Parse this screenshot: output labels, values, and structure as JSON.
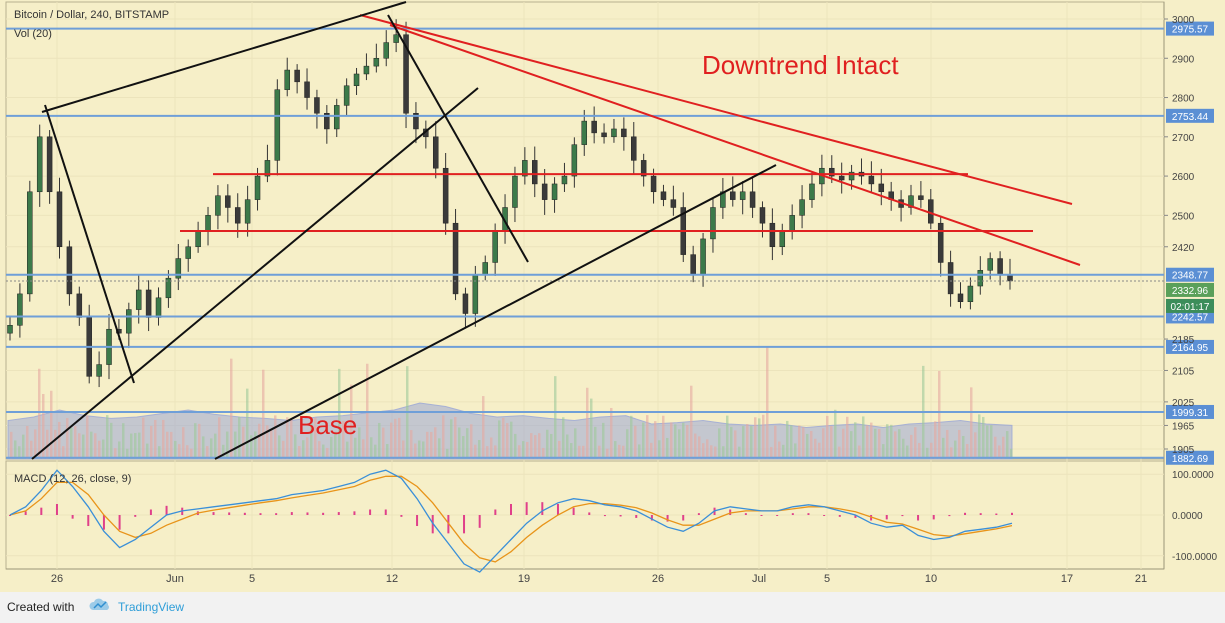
{
  "header": {
    "title": "Bitcoin / Dollar, 240, BITSTAMP",
    "volume_label": "Vol (20)",
    "macd_label": "MACD (12, 26, close, 9)"
  },
  "annotations": {
    "downtrend": "Downtrend Intact",
    "base": "Base"
  },
  "footer": {
    "created_with": "Created with",
    "brand": "TradingView"
  },
  "colors": {
    "background": "#f6efc8",
    "level_line": "#6f9fd8",
    "red_line": "#e02020",
    "black_line": "#111111",
    "candle_up": "#3c7a4a",
    "candle_down": "#3a3a3a",
    "volume_fill": "#9aa6d6",
    "macd_line": "#3a8fd8",
    "signal_line": "#e8941a",
    "histogram": "#e0408a",
    "last_price": "#5aa05a",
    "countdown": "#3c8d5a"
  },
  "chart_data": {
    "type": "candlestick",
    "title": "Bitcoin / Dollar, 240, BITSTAMP",
    "price_axis": {
      "ticks": [
        3000,
        2900,
        2800,
        2700,
        2600,
        2500,
        2420,
        2185,
        2105,
        2025,
        1965,
        1905
      ],
      "ylim": [
        1880,
        3010
      ]
    },
    "time_axis": {
      "ticks": [
        "26",
        "Jun",
        "5",
        "12",
        "19",
        "26",
        "Jul",
        "5",
        "10",
        "17",
        "21"
      ]
    },
    "horizontal_levels": [
      2975.57,
      2753.44,
      2348.77,
      2242.57,
      2164.95,
      1999.31,
      1882.69
    ],
    "red_horizontal_levels": [
      2605,
      2460
    ],
    "last_price": "2332.96",
    "countdown": "02:01:17",
    "macd_axis": {
      "ticks": [
        "100.0000",
        "0.0000",
        "-100.0000"
      ],
      "ylim": [
        -130,
        130
      ]
    },
    "close_series": [
      2220,
      2300,
      2560,
      2700,
      2560,
      2420,
      2300,
      2240,
      2090,
      2120,
      2210,
      2200,
      2260,
      2310,
      2240,
      2290,
      2340,
      2390,
      2420,
      2460,
      2500,
      2550,
      2520,
      2480,
      2540,
      2600,
      2640,
      2820,
      2870,
      2840,
      2800,
      2760,
      2720,
      2780,
      2830,
      2860,
      2880,
      2900,
      2940,
      2960,
      2760,
      2720,
      2700,
      2620,
      2480,
      2300,
      2250,
      2350,
      2380,
      2460,
      2520,
      2600,
      2640,
      2580,
      2540,
      2580,
      2600,
      2680,
      2740,
      2710,
      2700,
      2720,
      2700,
      2640,
      2600,
      2560,
      2540,
      2520,
      2400,
      2350,
      2440,
      2520,
      2560,
      2540,
      2560,
      2520,
      2480,
      2420,
      2460,
      2500,
      2540,
      2580,
      2620,
      2600,
      2590,
      2610,
      2600,
      2580,
      2560,
      2540,
      2520,
      2550,
      2540,
      2480,
      2380,
      2300,
      2280,
      2320,
      2360,
      2390,
      2350,
      2332.96
    ],
    "macd_series": [
      0,
      20,
      60,
      110,
      70,
      20,
      -40,
      -80,
      -60,
      -30,
      0,
      10,
      15,
      20,
      25,
      30,
      35,
      40,
      50,
      55,
      60,
      70,
      80,
      100,
      110,
      90,
      40,
      -20,
      -70,
      -120,
      -140,
      -100,
      -60,
      -20,
      10,
      30,
      40,
      35,
      25,
      20,
      10,
      -10,
      -30,
      -40,
      -20,
      10,
      20,
      15,
      10,
      10,
      20,
      25,
      20,
      10,
      0,
      -20,
      -30,
      -25,
      -50,
      -60,
      -55,
      -40,
      -35,
      -30,
      -20
    ],
    "signal_series": [
      0,
      10,
      40,
      80,
      80,
      50,
      0,
      -40,
      -55,
      -45,
      -25,
      -10,
      5,
      12,
      18,
      24,
      30,
      35,
      42,
      48,
      54,
      62,
      70,
      85,
      95,
      95,
      70,
      30,
      -20,
      -70,
      -105,
      -115,
      -90,
      -55,
      -25,
      0,
      20,
      28,
      28,
      24,
      18,
      5,
      -12,
      -25,
      -25,
      -10,
      5,
      10,
      10,
      10,
      15,
      20,
      20,
      15,
      8,
      -5,
      -18,
      -22,
      -35,
      -48,
      -52,
      -46,
      -40,
      -34,
      -26
    ],
    "volume_band": [
      0.55,
      0.6,
      0.7,
      0.62,
      0.58,
      0.6,
      0.65,
      0.7,
      0.64,
      0.6,
      0.58,
      0.55,
      0.6,
      0.62,
      0.66,
      0.7,
      0.8,
      0.75,
      0.65,
      0.6,
      0.62,
      0.58,
      0.55,
      0.6,
      0.62,
      0.5,
      0.52,
      0.55,
      0.5,
      0.48,
      0.5,
      0.45,
      0.48,
      0.5,
      0.45,
      0.5,
      0.52,
      0.55,
      0.5,
      0.48
    ]
  }
}
